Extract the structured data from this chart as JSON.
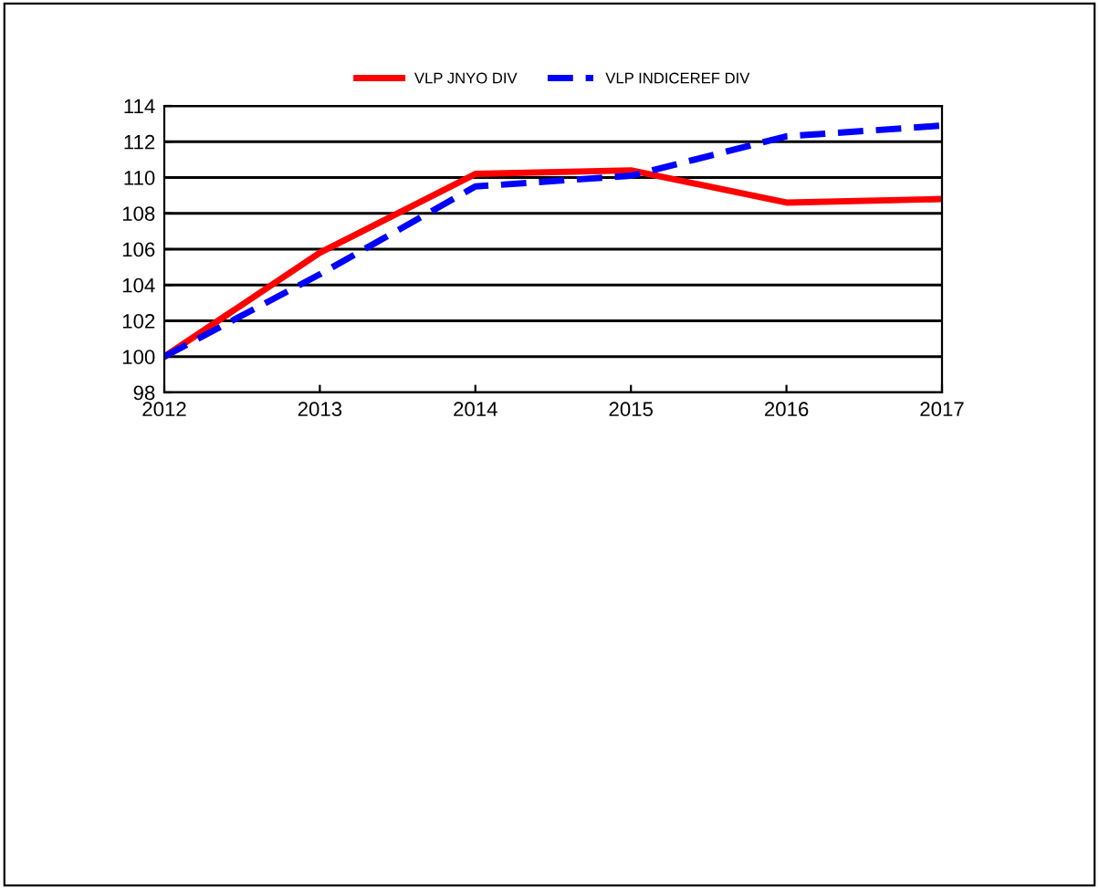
{
  "chart_data": {
    "type": "line",
    "x": [
      2012,
      2013,
      2014,
      2015,
      2016,
      2017
    ],
    "series": [
      {
        "name": "VLP JNYO DIV",
        "color": "#ff0000",
        "line_style": "solid",
        "values": [
          100,
          105.8,
          110.2,
          110.4,
          108.6,
          108.8
        ]
      },
      {
        "name": "VLP INDICEREF DIV",
        "color": "#0000ff",
        "line_style": "dashed",
        "values": [
          100,
          104.6,
          109.5,
          110.1,
          112.3,
          112.9
        ]
      }
    ],
    "xlim": [
      2012,
      2017
    ],
    "xticks": [
      2012,
      2013,
      2014,
      2015,
      2016,
      2017
    ],
    "ylim": [
      98,
      114
    ],
    "yticks": [
      98,
      100,
      102,
      104,
      106,
      108,
      110,
      112,
      114
    ],
    "grid": "y",
    "legend": "top",
    "marker": "none"
  }
}
